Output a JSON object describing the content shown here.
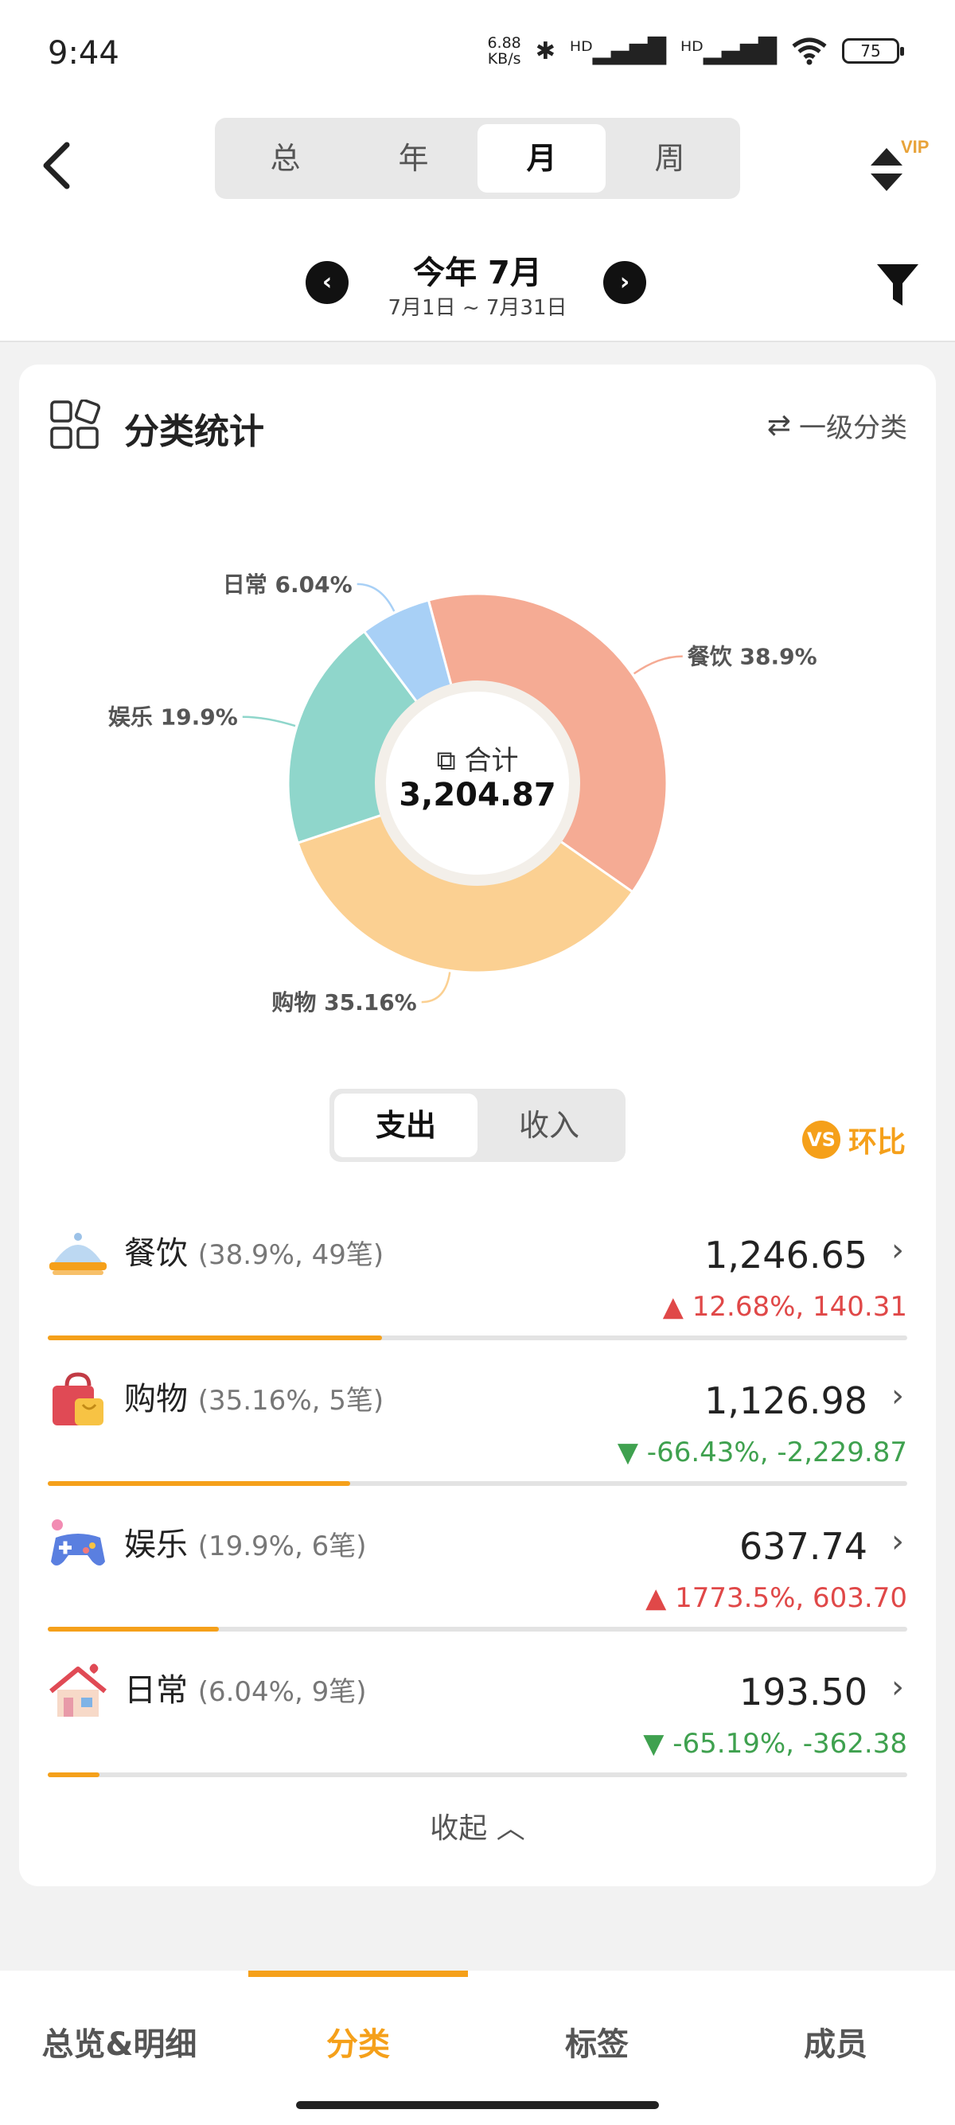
{
  "status": {
    "time": "9:44",
    "speed_value": "6.88",
    "speed_unit": "KB/s",
    "signal1": "ᴴᴰ▂▄▆█",
    "signal2": "ᴴᴰ▂▄▆█",
    "battery": "75"
  },
  "header": {
    "back_icon": "chevron-left-icon",
    "period_tabs": [
      {
        "label": "总",
        "active": false
      },
      {
        "label": "年",
        "active": false
      },
      {
        "label": "月",
        "active": true
      },
      {
        "label": "周",
        "active": false
      }
    ],
    "vip_badge": "VIP",
    "period_title": "今年 7月",
    "period_range": "7月1日 ~ 7月31日",
    "prev_icon": "chevron-left-circle-icon",
    "next_icon": "chevron-right-circle-icon",
    "filter_icon": "filter-icon"
  },
  "card": {
    "title": "分类统计",
    "level_switch": "一级分类",
    "center_label": "合计",
    "center_value": "3,204.87",
    "tabs": [
      {
        "label": "支出",
        "active": true
      },
      {
        "label": "收入",
        "active": false
      }
    ],
    "compare_badge": "VS",
    "compare_label": "环比",
    "collapse_label": "收起"
  },
  "chart_data": {
    "type": "pie",
    "donut": true,
    "slices": [
      {
        "name": "餐饮",
        "value": 38.9,
        "label": "餐饮 38.9%",
        "color": "#f5ab94"
      },
      {
        "name": "购物",
        "value": 35.16,
        "label": "购物 35.16%",
        "color": "#fbd092"
      },
      {
        "name": "娱乐",
        "value": 19.9,
        "label": "娱乐 19.9%",
        "color": "#8fd6cb"
      },
      {
        "name": "日常",
        "value": 6.04,
        "label": "日常 6.04%",
        "color": "#a8d0f6"
      }
    ]
  },
  "categories": [
    {
      "name": "餐饮",
      "meta": "(38.9%, 49笔)",
      "amount": "1,246.65",
      "change": "12.68%, 140.31",
      "direction": "up",
      "share": 0.389,
      "icon": "food-cloche-icon"
    },
    {
      "name": "购物",
      "meta": "(35.16%, 5笔)",
      "amount": "1,126.98",
      "change": "-66.43%, -2,229.87",
      "direction": "down",
      "share": 0.3516,
      "icon": "shopping-bag-icon"
    },
    {
      "name": "娱乐",
      "meta": "(19.9%, 6笔)",
      "amount": "637.74",
      "change": "1773.5%, 603.70",
      "direction": "up",
      "share": 0.199,
      "icon": "gamepad-icon"
    },
    {
      "name": "日常",
      "meta": "(6.04%, 9笔)",
      "amount": "193.50",
      "change": "-65.19%, -362.38",
      "direction": "down",
      "share": 0.0604,
      "icon": "house-icon"
    }
  ],
  "bottom_nav": [
    {
      "label": "总览&明细",
      "active": false
    },
    {
      "label": "分类",
      "active": true
    },
    {
      "label": "标签",
      "active": false
    },
    {
      "label": "成员",
      "active": false
    }
  ],
  "colors": {
    "accent": "#f5a01a",
    "up": "#e04848",
    "down": "#3fa14f"
  }
}
